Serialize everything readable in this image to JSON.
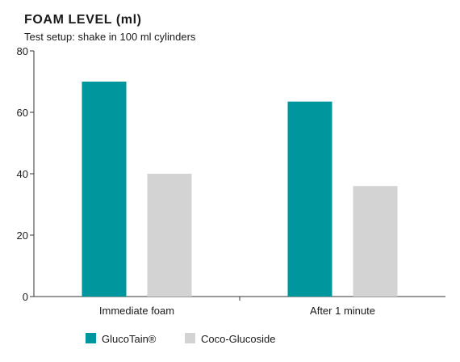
{
  "chart_data": {
    "type": "bar",
    "title": "FOAM LEVEL (ml)",
    "subtitle": "Test setup: shake in 100 ml cylinders",
    "categories": [
      "Immediate foam",
      "After 1 minute"
    ],
    "series": [
      {
        "name": "GlucoTain®",
        "color": "#00969e",
        "values": [
          70,
          63.5
        ]
      },
      {
        "name": "Coco-Glucoside",
        "color": "#d3d3d3",
        "values": [
          40,
          36
        ]
      }
    ],
    "ylim": [
      0,
      80
    ],
    "yticks": [
      0,
      20,
      40,
      60,
      80
    ],
    "grid": false,
    "legend_position": "bottom-left"
  }
}
